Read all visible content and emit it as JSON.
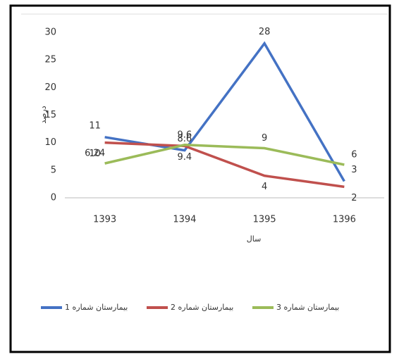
{
  "chart_data": {
    "type": "line",
    "categories": [
      "1393",
      "1394",
      "1395",
      "1396"
    ],
    "series": [
      {
        "name": "بیمارستان شماره 1",
        "color": "#4472c4",
        "values": [
          11,
          8.6,
          28,
          3
        ]
      },
      {
        "name": "بیمارستان شماره 2",
        "color": "#c0504d",
        "values": [
          10,
          9.4,
          4,
          2
        ]
      },
      {
        "name": "بیمارستان شماره 3",
        "color": "#9bbb59",
        "values": [
          6.24,
          9.6,
          9,
          6
        ]
      }
    ],
    "ylim": [
      0,
      30
    ],
    "yticks": [
      0,
      5,
      10,
      15,
      20,
      25,
      30
    ],
    "y_label": "درصد",
    "x_label": "سال",
    "grid": false,
    "legend": "bottom"
  }
}
